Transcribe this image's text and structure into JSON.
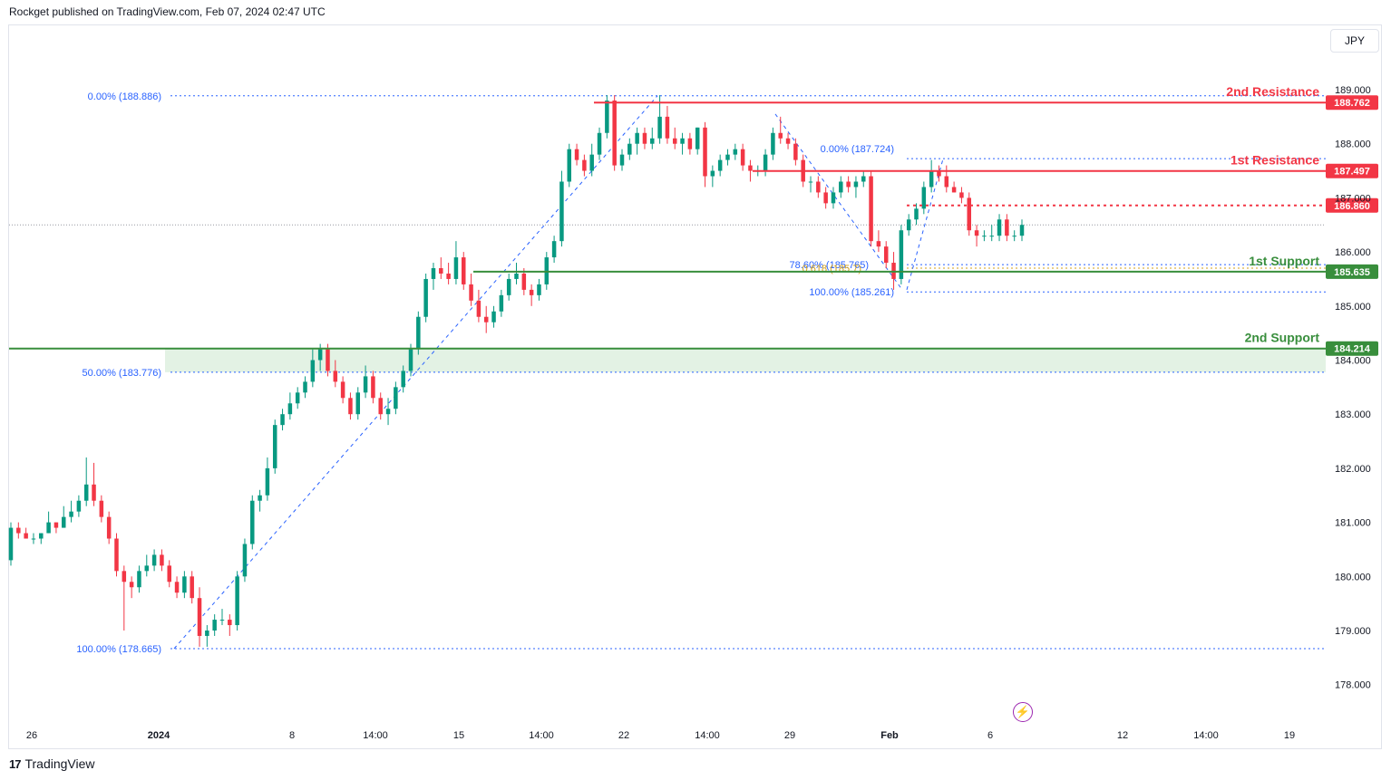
{
  "header": {
    "publisher_text": "Rockget published on TradingView.com, Feb 07, 2024 02:47 UTC"
  },
  "toolbar": {
    "currency": "JPY"
  },
  "footer": {
    "brand": "TradingView",
    "brand_icon": "tradingview-logo-icon"
  },
  "colors": {
    "up": "#089981",
    "down": "#f23645",
    "resistance": "#f23645",
    "support": "#388e3c",
    "fib": "#2962ff",
    "fib_text": "#2962ff",
    "golden": "#d4a017",
    "zone": "#e3f2e4"
  },
  "chart_data": {
    "type": "candlestick",
    "y_ticks": [
      "189.000",
      "188.000",
      "187.000",
      "186.000",
      "185.000",
      "184.000",
      "183.000",
      "182.000",
      "181.000",
      "180.000",
      "179.000",
      "178.000"
    ],
    "x_ticks": [
      "26",
      "2024",
      "8",
      "14:00",
      "15",
      "14:00",
      "22",
      "14:00",
      "29",
      "Feb",
      "6",
      "12",
      "14:00",
      "19"
    ],
    "ylim": [
      177.5,
      189.2
    ],
    "levels": [
      {
        "label": "2nd Resistance",
        "value": 188.762,
        "price_label": "188.762",
        "kind": "resistance"
      },
      {
        "label": "1st Resistance",
        "value": 187.497,
        "price_label": "187.497",
        "kind": "resistance"
      },
      {
        "label": "",
        "value": 186.86,
        "price_label": "186.860",
        "kind": "pivot"
      },
      {
        "label": "1st Support",
        "value": 185.635,
        "price_label": "185.635",
        "kind": "support"
      },
      {
        "label": "2nd Support",
        "value": 184.214,
        "price_label": "184.214",
        "kind": "support"
      }
    ],
    "fib_large": [
      {
        "text": "0.00% (188.886)",
        "value": 188.886
      },
      {
        "text": "50.00% (183.776)",
        "value": 183.776
      },
      {
        "text": "100.00% (178.665)",
        "value": 178.665
      }
    ],
    "fib_small": [
      {
        "text": "0.00% (187.724)",
        "value": 187.724
      },
      {
        "text": "78.60% (185.765)",
        "value": 185.765
      },
      {
        "text": "0.618 (185.7)",
        "value": 185.7
      },
      {
        "text": "100.00% (185.261)",
        "value": 185.261
      }
    ],
    "candles": [
      [
        180.3,
        181.0,
        180.2,
        180.9
      ],
      [
        180.9,
        181.0,
        180.7,
        180.8
      ],
      [
        180.8,
        180.9,
        180.7,
        180.7
      ],
      [
        180.7,
        180.8,
        180.6,
        180.7
      ],
      [
        180.7,
        180.8,
        180.6,
        180.8
      ],
      [
        180.8,
        181.2,
        180.8,
        181.0
      ],
      [
        181.0,
        181.0,
        180.8,
        180.9
      ],
      [
        180.9,
        181.3,
        180.9,
        181.1
      ],
      [
        181.1,
        181.4,
        181.0,
        181.2
      ],
      [
        181.2,
        181.5,
        181.1,
        181.4
      ],
      [
        181.4,
        182.2,
        181.3,
        181.7
      ],
      [
        181.7,
        182.1,
        181.3,
        181.4
      ],
      [
        181.4,
        181.5,
        181.0,
        181.1
      ],
      [
        181.1,
        181.2,
        180.6,
        180.7
      ],
      [
        180.7,
        180.8,
        180.0,
        180.1
      ],
      [
        180.1,
        180.2,
        179.0,
        179.9
      ],
      [
        179.9,
        180.0,
        179.6,
        179.8
      ],
      [
        179.8,
        180.2,
        179.7,
        180.1
      ],
      [
        180.1,
        180.4,
        180.0,
        180.2
      ],
      [
        180.2,
        180.5,
        180.1,
        180.4
      ],
      [
        180.4,
        180.5,
        180.1,
        180.2
      ],
      [
        180.2,
        180.3,
        179.8,
        179.9
      ],
      [
        179.9,
        180.0,
        179.6,
        179.7
      ],
      [
        179.7,
        180.1,
        179.6,
        180.0
      ],
      [
        180.0,
        180.1,
        179.5,
        179.6
      ],
      [
        179.6,
        179.8,
        178.7,
        178.9
      ],
      [
        178.9,
        179.1,
        178.7,
        179.0
      ],
      [
        179.0,
        179.3,
        178.9,
        179.2
      ],
      [
        179.2,
        179.4,
        179.1,
        179.2
      ],
      [
        179.2,
        179.3,
        178.9,
        179.1
      ],
      [
        179.1,
        180.1,
        179.0,
        180.0
      ],
      [
        180.0,
        180.7,
        179.9,
        180.6
      ],
      [
        180.6,
        181.5,
        180.5,
        181.4
      ],
      [
        181.4,
        181.6,
        181.2,
        181.5
      ],
      [
        181.5,
        182.2,
        181.4,
        182.0
      ],
      [
        182.0,
        182.9,
        181.9,
        182.8
      ],
      [
        182.8,
        183.1,
        182.7,
        183.0
      ],
      [
        183.0,
        183.4,
        182.9,
        183.2
      ],
      [
        183.2,
        183.5,
        183.1,
        183.4
      ],
      [
        183.4,
        183.7,
        183.3,
        183.6
      ],
      [
        183.6,
        184.2,
        183.5,
        184.0
      ],
      [
        184.0,
        184.3,
        183.8,
        184.2
      ],
      [
        184.2,
        184.3,
        183.7,
        183.8
      ],
      [
        183.8,
        184.0,
        183.5,
        183.6
      ],
      [
        183.6,
        183.7,
        183.2,
        183.3
      ],
      [
        183.3,
        183.4,
        182.9,
        183.0
      ],
      [
        183.0,
        183.5,
        182.9,
        183.4
      ],
      [
        183.4,
        183.9,
        183.3,
        183.7
      ],
      [
        183.7,
        183.8,
        183.2,
        183.3
      ],
      [
        183.3,
        183.4,
        182.9,
        183.0
      ],
      [
        183.0,
        183.3,
        182.8,
        183.1
      ],
      [
        183.1,
        183.6,
        183.0,
        183.5
      ],
      [
        183.5,
        183.9,
        183.4,
        183.8
      ],
      [
        183.8,
        184.3,
        183.7,
        184.2
      ],
      [
        184.2,
        184.9,
        184.1,
        184.8
      ],
      [
        184.8,
        185.6,
        184.7,
        185.5
      ],
      [
        185.5,
        185.8,
        185.3,
        185.7
      ],
      [
        185.7,
        185.9,
        185.5,
        185.6
      ],
      [
        185.6,
        185.8,
        185.4,
        185.5
      ],
      [
        185.5,
        186.2,
        185.4,
        185.9
      ],
      [
        185.9,
        186.0,
        185.3,
        185.4
      ],
      [
        185.4,
        185.6,
        185.0,
        185.1
      ],
      [
        185.1,
        185.3,
        184.7,
        184.8
      ],
      [
        184.8,
        185.0,
        184.5,
        184.7
      ],
      [
        184.7,
        185.0,
        184.6,
        184.9
      ],
      [
        184.9,
        185.3,
        184.8,
        185.2
      ],
      [
        185.2,
        185.6,
        185.1,
        185.5
      ],
      [
        185.5,
        185.8,
        185.4,
        185.6
      ],
      [
        185.6,
        185.7,
        185.2,
        185.3
      ],
      [
        185.3,
        185.4,
        185.0,
        185.2
      ],
      [
        185.2,
        185.5,
        185.1,
        185.4
      ],
      [
        185.4,
        186.0,
        185.3,
        185.9
      ],
      [
        185.9,
        186.3,
        185.8,
        186.2
      ],
      [
        186.2,
        187.5,
        186.1,
        187.3
      ],
      [
        187.3,
        188.0,
        187.2,
        187.9
      ],
      [
        187.9,
        188.0,
        187.6,
        187.7
      ],
      [
        187.7,
        187.8,
        187.4,
        187.5
      ],
      [
        187.5,
        188.0,
        187.4,
        187.8
      ],
      [
        187.8,
        188.3,
        187.7,
        188.2
      ],
      [
        188.2,
        188.9,
        188.1,
        188.8
      ],
      [
        188.8,
        188.9,
        187.5,
        187.6
      ],
      [
        187.6,
        187.9,
        187.5,
        187.8
      ],
      [
        187.8,
        188.1,
        187.7,
        188.0
      ],
      [
        188.0,
        188.3,
        187.8,
        188.2
      ],
      [
        188.2,
        188.3,
        187.9,
        188.0
      ],
      [
        188.0,
        188.3,
        187.9,
        188.1
      ],
      [
        188.1,
        188.9,
        188.0,
        188.5
      ],
      [
        188.5,
        188.7,
        188.0,
        188.1
      ],
      [
        188.1,
        188.3,
        187.9,
        188.0
      ],
      [
        188.0,
        188.2,
        187.8,
        188.1
      ],
      [
        188.1,
        188.2,
        187.8,
        187.9
      ],
      [
        187.9,
        188.3,
        187.8,
        188.3
      ],
      [
        188.3,
        188.4,
        187.2,
        187.4
      ],
      [
        187.4,
        187.6,
        187.2,
        187.5
      ],
      [
        187.5,
        187.8,
        187.4,
        187.7
      ],
      [
        187.7,
        187.9,
        187.6,
        187.8
      ],
      [
        187.8,
        188.0,
        187.7,
        187.9
      ],
      [
        187.9,
        188.0,
        187.5,
        187.6
      ],
      [
        187.6,
        187.7,
        187.3,
        187.5
      ],
      [
        187.5,
        187.6,
        187.4,
        187.5
      ],
      [
        187.5,
        187.9,
        187.4,
        187.8
      ],
      [
        187.8,
        188.3,
        187.7,
        188.2
      ],
      [
        188.2,
        188.5,
        188.0,
        188.1
      ],
      [
        188.1,
        188.2,
        187.9,
        188.0
      ],
      [
        188.0,
        188.1,
        187.6,
        187.7
      ],
      [
        187.7,
        187.8,
        187.2,
        187.3
      ],
      [
        187.3,
        187.4,
        187.1,
        187.3
      ],
      [
        187.3,
        187.4,
        187.0,
        187.1
      ],
      [
        187.1,
        187.2,
        186.8,
        186.9
      ],
      [
        186.9,
        187.2,
        186.8,
        187.1
      ],
      [
        187.1,
        187.4,
        187.0,
        187.3
      ],
      [
        187.3,
        187.4,
        187.1,
        187.2
      ],
      [
        187.2,
        187.4,
        187.0,
        187.3
      ],
      [
        187.3,
        187.5,
        187.2,
        187.4
      ],
      [
        187.4,
        187.5,
        186.1,
        186.2
      ],
      [
        186.2,
        186.4,
        186.0,
        186.1
      ],
      [
        186.1,
        186.2,
        185.7,
        185.8
      ],
      [
        185.8,
        186.0,
        185.3,
        185.5
      ],
      [
        185.5,
        186.5,
        185.4,
        186.4
      ],
      [
        186.4,
        186.7,
        186.3,
        186.6
      ],
      [
        186.6,
        186.9,
        186.5,
        186.8
      ],
      [
        186.8,
        187.3,
        186.7,
        187.2
      ],
      [
        187.2,
        187.7,
        187.1,
        187.5
      ],
      [
        187.5,
        187.6,
        187.3,
        187.4
      ],
      [
        187.4,
        187.6,
        187.1,
        187.2
      ],
      [
        187.2,
        187.3,
        187.1,
        187.1
      ],
      [
        187.1,
        187.2,
        186.9,
        187.0
      ],
      [
        187.0,
        187.1,
        186.3,
        186.4
      ],
      [
        186.4,
        186.5,
        186.1,
        186.3
      ],
      [
        186.3,
        186.4,
        186.2,
        186.3
      ],
      [
        186.3,
        186.5,
        186.2,
        186.3
      ],
      [
        186.3,
        186.7,
        186.2,
        186.6
      ],
      [
        186.6,
        186.7,
        186.2,
        186.3
      ],
      [
        186.3,
        186.4,
        186.2,
        186.3
      ],
      [
        186.3,
        186.6,
        186.2,
        186.5
      ]
    ]
  }
}
